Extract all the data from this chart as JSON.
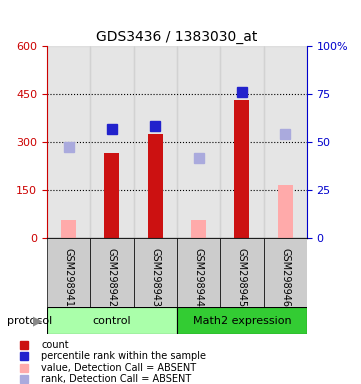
{
  "title": "GDS3436 / 1383030_at",
  "samples": [
    "GSM298941",
    "GSM298942",
    "GSM298943",
    "GSM298944",
    "GSM298945",
    "GSM298946"
  ],
  "groups": [
    "control",
    "control",
    "control",
    "Math2 expression",
    "Math2 expression",
    "Math2 expression"
  ],
  "red_bars": [
    null,
    265,
    325,
    null,
    430,
    null
  ],
  "pink_bars": [
    55,
    null,
    null,
    55,
    null,
    165
  ],
  "blue_squares": [
    null,
    340,
    350,
    null,
    455,
    null
  ],
  "lightblue_squares": [
    285,
    null,
    null,
    250,
    null,
    325
  ],
  "ylim_left": [
    0,
    600
  ],
  "ylim_right": [
    0,
    100
  ],
  "yticks_left": [
    0,
    150,
    300,
    450,
    600
  ],
  "yticks_right": [
    0,
    25,
    50,
    75,
    100
  ],
  "ytick_labels_left": [
    "0",
    "150",
    "300",
    "450",
    "600"
  ],
  "ytick_labels_right": [
    "0",
    "25",
    "50",
    "75",
    "100%"
  ],
  "left_axis_color": "#cc0000",
  "right_axis_color": "#0000cc",
  "red_bar_color": "#cc1111",
  "pink_bar_color": "#ffaaaa",
  "blue_square_color": "#2222cc",
  "lightblue_square_color": "#aaaadd",
  "group_colors": [
    "#aaffaa",
    "#33cc33"
  ],
  "group_labels": [
    "control",
    "Math2 expression"
  ],
  "bg_color": "#cccccc",
  "plot_bg": "#ffffff",
  "legend_items": [
    "count",
    "percentile rank within the sample",
    "value, Detection Call = ABSENT",
    "rank, Detection Call = ABSENT"
  ],
  "legend_colors": [
    "#cc1111",
    "#2222cc",
    "#ffaaaa",
    "#aaaadd"
  ],
  "protocol_label": "protocol"
}
